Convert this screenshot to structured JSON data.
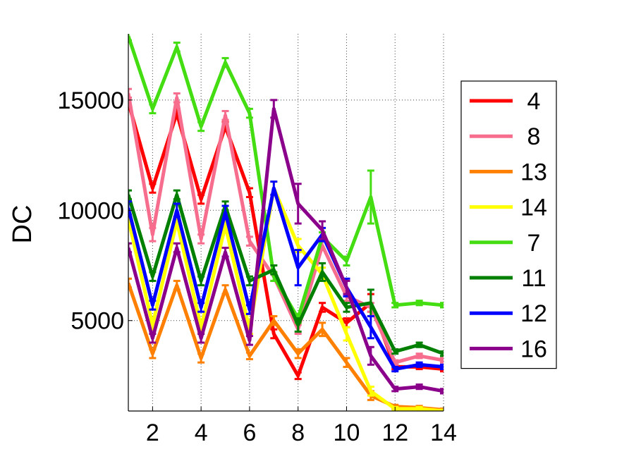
{
  "chart_data": {
    "type": "line",
    "ylabel": "DC",
    "xlim": [
      1,
      14
    ],
    "ylim": [
      900,
      18000
    ],
    "xticks": [
      2,
      4,
      6,
      8,
      10,
      12,
      14
    ],
    "yticks": [
      5000,
      10000,
      15000
    ],
    "grid": true,
    "grid_style": "dotted",
    "error_bars": true,
    "legend_position": "right",
    "x": [
      1,
      2,
      3,
      4,
      5,
      6,
      7,
      8,
      9,
      10,
      11,
      12,
      13,
      14
    ],
    "series": [
      {
        "name": "4",
        "color": "#ff0000",
        "values": [
          14900,
          11000,
          14400,
          10500,
          13800,
          10800,
          4400,
          2500,
          5600,
          4900,
          5800,
          2900,
          2900,
          2800
        ],
        "errors": [
          200,
          200,
          200,
          200,
          200,
          200,
          200,
          150,
          200,
          200,
          400,
          100,
          100,
          100
        ]
      },
      {
        "name": "8",
        "color": "#f76d8e",
        "values": [
          15300,
          8900,
          15100,
          8700,
          14300,
          8600,
          7000,
          4600,
          8400,
          6100,
          5600,
          3100,
          3400,
          3200
        ],
        "errors": [
          200,
          300,
          200,
          200,
          200,
          200,
          200,
          200,
          200,
          200,
          200,
          100,
          100,
          100
        ]
      },
      {
        "name": "13",
        "color": "#ff8000",
        "values": [
          6700,
          3500,
          6600,
          3300,
          6400,
          3400,
          5000,
          3500,
          4600,
          3100,
          1600,
          1100,
          1050,
          950
        ],
        "errors": [
          200,
          200,
          200,
          200,
          200,
          150,
          200,
          200,
          300,
          200,
          200,
          80,
          80,
          60
        ]
      },
      {
        "name": "14",
        "color": "#ffff00",
        "values": [
          9600,
          4800,
          9500,
          4700,
          9300,
          4600,
          11000,
          8400,
          7100,
          4400,
          1800,
          1000,
          1000,
          900
        ],
        "errors": [
          200,
          200,
          200,
          200,
          200,
          200,
          300,
          300,
          300,
          300,
          200,
          80,
          80,
          60
        ]
      },
      {
        "name": "7",
        "color": "#44dd11",
        "values": [
          17900,
          14600,
          17400,
          13800,
          16700,
          14400,
          7000,
          5100,
          8800,
          7700,
          10600,
          5700,
          5800,
          5700
        ],
        "errors": [
          200,
          200,
          200,
          200,
          200,
          200,
          200,
          200,
          200,
          200,
          1200,
          100,
          100,
          100
        ]
      },
      {
        "name": "11",
        "color": "#007f00",
        "values": [
          10700,
          7000,
          10700,
          6800,
          10200,
          6800,
          7300,
          4800,
          7200,
          5600,
          5800,
          3600,
          3900,
          3500
        ],
        "errors": [
          200,
          200,
          200,
          200,
          200,
          200,
          200,
          300,
          400,
          200,
          600,
          100,
          100,
          100
        ]
      },
      {
        "name": "12",
        "color": "#0000ff",
        "values": [
          10100,
          5700,
          10000,
          5600,
          9900,
          5500,
          11000,
          7400,
          8900,
          6500,
          4700,
          2800,
          3000,
          2900
        ],
        "errors": [
          300,
          200,
          300,
          200,
          300,
          200,
          300,
          800,
          300,
          400,
          500,
          100,
          100,
          100
        ]
      },
      {
        "name": "16",
        "color": "#8b008b",
        "values": [
          8300,
          4200,
          8300,
          4200,
          8100,
          4100,
          14600,
          10300,
          9100,
          6500,
          3400,
          1900,
          2000,
          1800
        ],
        "errors": [
          200,
          200,
          200,
          200,
          200,
          200,
          400,
          900,
          400,
          300,
          400,
          100,
          100,
          100
        ]
      }
    ]
  }
}
